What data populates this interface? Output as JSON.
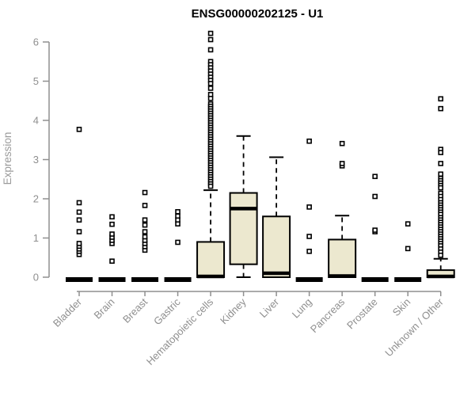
{
  "chart_data": {
    "type": "boxplot",
    "title": "ENSG00000202125 - U1",
    "ylabel": "Expression",
    "xlabel": "",
    "ylim": [
      0,
      6.4
    ],
    "yticks": [
      0,
      1,
      2,
      3,
      4,
      5,
      6
    ],
    "grid": false,
    "legend": "none",
    "colors": {
      "box_fill": "#ece8cf",
      "box_stroke": "#000000",
      "axis": "#8f8f8f",
      "tick_label": "#8f8f8f",
      "title": "#000000",
      "outlier_stroke": "#000000",
      "outlier_fill": "#ffffff",
      "background": "#ffffff"
    },
    "categories": [
      "Bladder",
      "Brain",
      "Breast",
      "Gastric",
      "Hematopoietic cells",
      "Kidney",
      "Liver",
      "Lung",
      "Pancreas",
      "Prostate",
      "Skin",
      "Unknown / Other"
    ],
    "series": [
      {
        "name": "Bladder",
        "q1": 0,
        "median": 0,
        "q3": 0,
        "whisker_low": 0,
        "whisker_high": 0,
        "outliers": [
          0.58,
          0.66,
          0.72,
          0.79,
          0.86,
          1.16,
          1.46,
          1.66,
          1.9,
          3.77
        ]
      },
      {
        "name": "Brain",
        "q1": 0,
        "median": 0,
        "q3": 0,
        "whisker_low": 0,
        "whisker_high": 0,
        "outliers": [
          0.41,
          0.86,
          0.94,
          1.02,
          1.1,
          1.35,
          1.54
        ]
      },
      {
        "name": "Breast",
        "q1": 0,
        "median": 0,
        "q3": 0,
        "whisker_low": 0,
        "whisker_high": 0,
        "outliers": [
          0.69,
          0.78,
          0.86,
          0.94,
          1.03,
          1.16,
          1.33,
          1.46,
          1.83,
          2.16
        ]
      },
      {
        "name": "Gastric",
        "q1": 0,
        "median": 0,
        "q3": 0,
        "whisker_low": 0,
        "whisker_high": 0,
        "outliers": [
          0.89,
          1.36,
          1.46,
          1.56,
          1.67
        ]
      },
      {
        "name": "Hematopoietic cells",
        "q1": 0,
        "median": 0.02,
        "q3": 0.9,
        "whisker_low": 0,
        "whisker_high": 2.22,
        "outliers": [
          6.22,
          6.06,
          5.8,
          5.5,
          5.42,
          5.34,
          5.26,
          5.18,
          5.1,
          5.02,
          4.94,
          4.82,
          4.66,
          4.56,
          4.42,
          4.36,
          4.3,
          4.24,
          4.18,
          4.12,
          4.06,
          4.0,
          3.94,
          3.88,
          3.82,
          3.76,
          3.7,
          3.64,
          3.58,
          3.52,
          3.46,
          3.4,
          3.34,
          3.28,
          3.22,
          3.16,
          3.1,
          3.04,
          2.98,
          2.92,
          2.86,
          2.8,
          2.74,
          2.68,
          2.62,
          2.56,
          2.5,
          2.44,
          2.38,
          2.32
        ]
      },
      {
        "name": "Kidney",
        "q1": 0.33,
        "median": 1.75,
        "q3": 2.15,
        "whisker_low": 0,
        "whisker_high": 3.6,
        "outliers": []
      },
      {
        "name": "Liver",
        "q1": 0,
        "median": 0.1,
        "q3": 1.55,
        "whisker_low": 0,
        "whisker_high": 3.06,
        "outliers": []
      },
      {
        "name": "Lung",
        "q1": 0,
        "median": 0,
        "q3": 0,
        "whisker_low": 0,
        "whisker_high": 0,
        "outliers": [
          0.66,
          1.04,
          1.79,
          3.47
        ]
      },
      {
        "name": "Pancreas",
        "q1": 0,
        "median": 0.03,
        "q3": 0.96,
        "whisker_low": 0,
        "whisker_high": 1.57,
        "outliers": [
          2.84,
          2.9,
          3.41
        ]
      },
      {
        "name": "Prostate",
        "q1": 0,
        "median": 0,
        "q3": 0,
        "whisker_low": 0,
        "whisker_high": 0,
        "outliers": [
          1.16,
          1.2,
          2.06,
          2.57
        ]
      },
      {
        "name": "Skin",
        "q1": 0,
        "median": 0,
        "q3": 0,
        "whisker_low": 0,
        "whisker_high": 0,
        "outliers": [
          0.73,
          1.36
        ]
      },
      {
        "name": "Unknown / Other",
        "q1": 0,
        "median": 0.02,
        "q3": 0.18,
        "whisker_low": 0,
        "whisker_high": 0.47,
        "outliers": [
          4.55,
          4.3,
          3.26,
          3.18,
          2.9,
          2.63,
          2.52,
          2.46,
          2.4,
          2.34,
          2.28,
          2.14,
          2.06,
          1.98,
          1.9,
          1.84,
          1.78,
          1.72,
          1.66,
          1.6,
          1.52,
          1.46,
          1.4,
          1.34,
          1.28,
          1.22,
          1.16,
          1.1,
          1.04,
          0.98,
          0.92,
          0.86,
          0.8,
          0.72,
          0.64,
          0.56
        ]
      }
    ]
  }
}
